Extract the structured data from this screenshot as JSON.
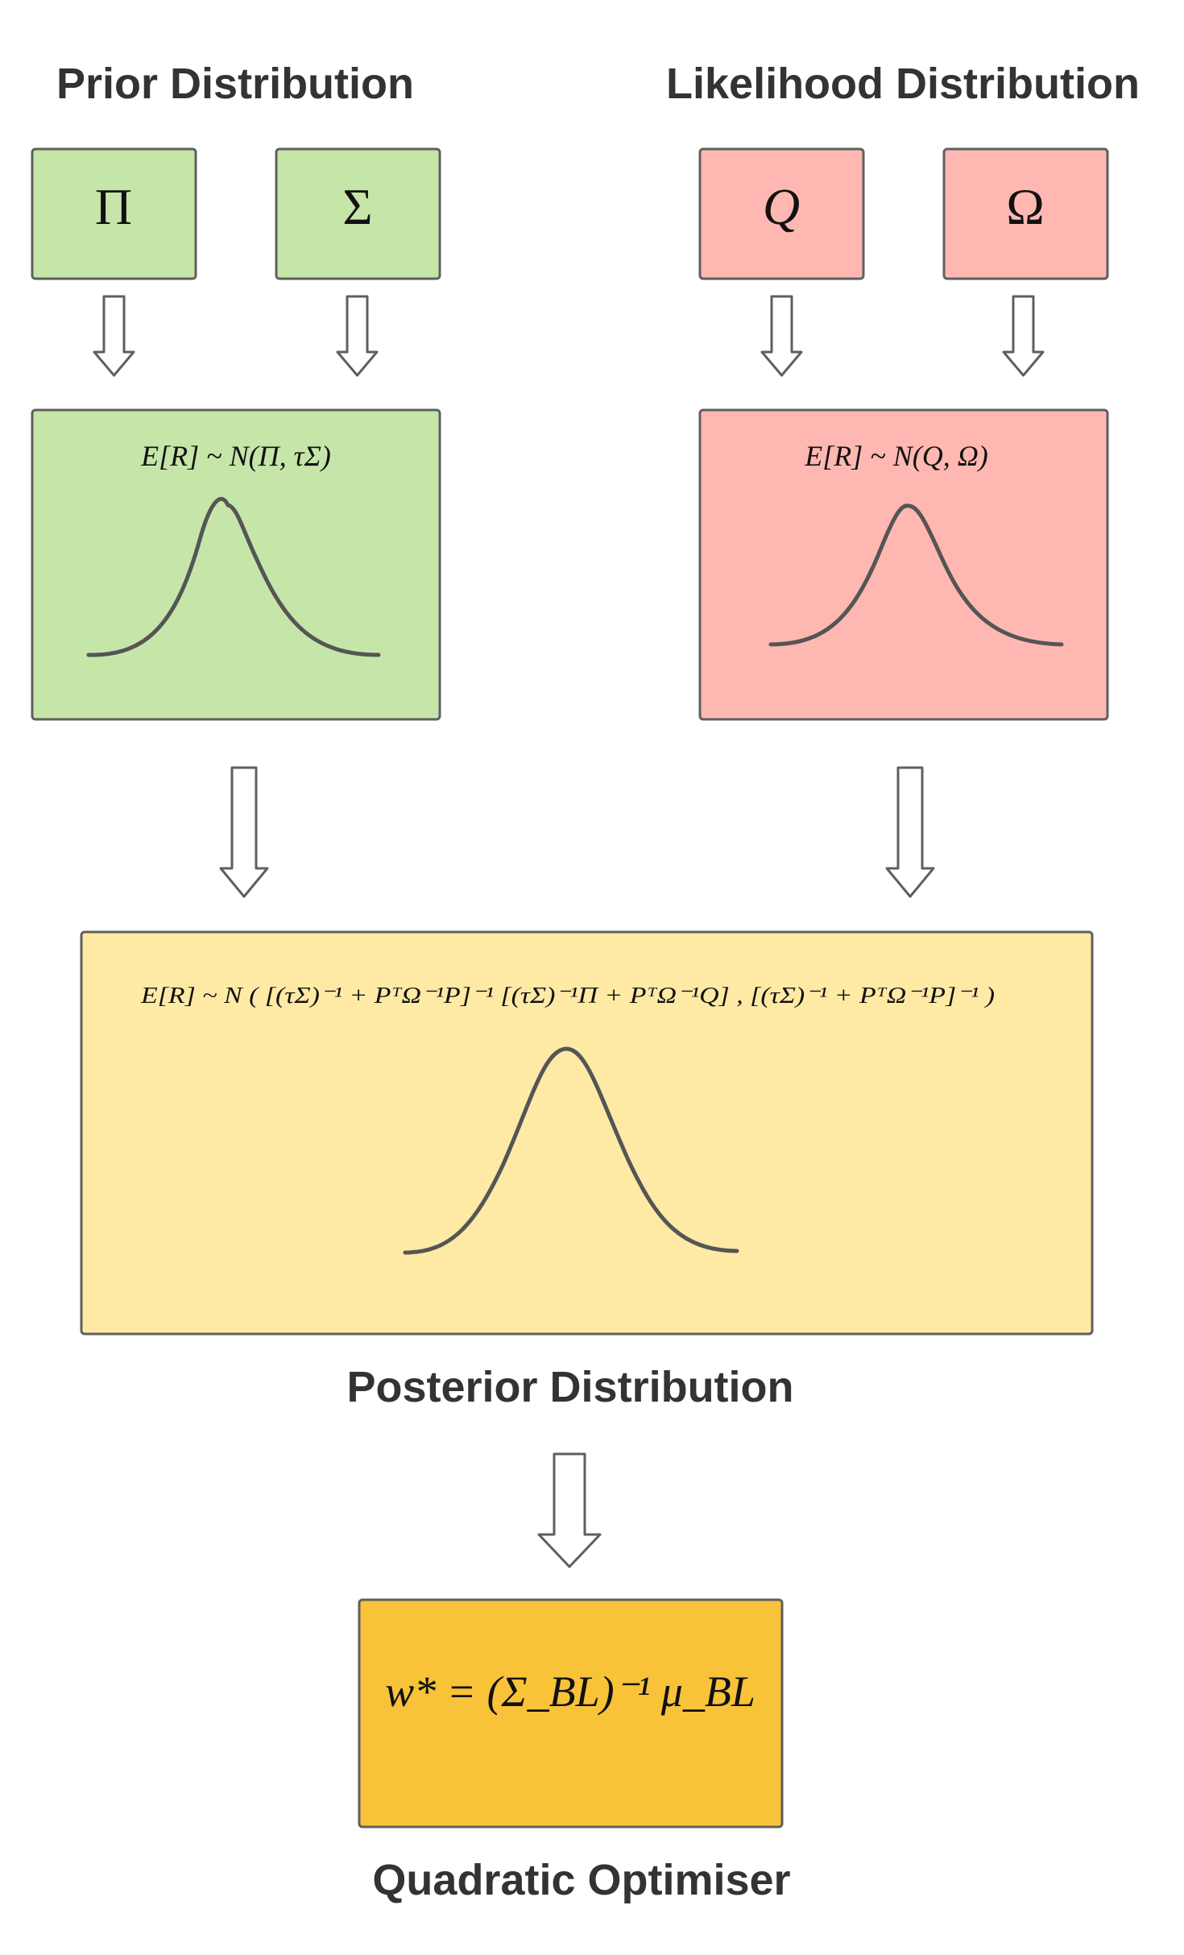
{
  "headings": {
    "prior": "Prior Distribution",
    "likelihood": "Likelihood Distribution",
    "posterior": "Posterior Distribution",
    "optimiser": "Quadratic Optimiser"
  },
  "prior": {
    "input_pi": "Π",
    "input_sigma": "Σ",
    "formula": "E[R] ~ N(Π, τΣ)"
  },
  "likelihood": {
    "input_q": "Q",
    "input_omega": "Ω",
    "formula": "E[R] ~ N(Q, Ω)"
  },
  "posterior": {
    "formula": "E[R] ~ N ( [(τΣ)⁻¹ + PᵀΩ⁻¹P]⁻¹ [(τΣ)⁻¹Π + PᵀΩ⁻¹Q] , [(τΣ)⁻¹ + PᵀΩ⁻¹P]⁻¹ )"
  },
  "optimiser": {
    "formula": "w* = (Σ_BL)⁻¹ μ_BL"
  },
  "colors": {
    "prior_fill": "#c6e6a9",
    "likelihood_fill": "#feb8b1",
    "posterior_fill": "#feeaa5",
    "optimiser_fill": "#f8c339",
    "stroke": "#5f5f5f",
    "heading_text": "#333333"
  }
}
